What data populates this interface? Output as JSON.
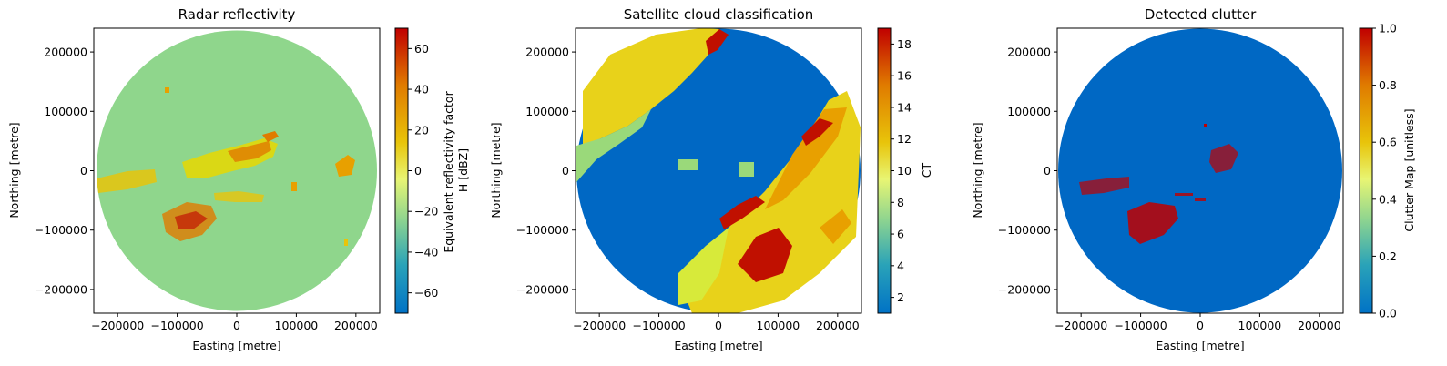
{
  "colors": {
    "cbar_stops": [
      "#0072c6",
      "#2aa3b8",
      "#8fd58f",
      "#e8f573",
      "#e8c40a",
      "#e07b00",
      "#c00000"
    ],
    "radar_background": "#8fd68c",
    "radar_echo_low": "#e8d800",
    "radar_echo_high": "#e07b00",
    "satellite_clear": "#0068c4",
    "satellite_lightgreen": "#9ad97a",
    "satellite_yellowgreen": "#d7ea3a",
    "satellite_yellow": "#e8d21a",
    "satellite_orange": "#e8a000",
    "satellite_red": "#c01000",
    "clutter_zero": "#0068c4",
    "clutter_one": "#c00000"
  },
  "chart_data": [
    {
      "type": "heatmap",
      "title": "Radar reflectivity",
      "xlabel": "Easting [metre]",
      "ylabel": "Northing [metre]",
      "xlim": [
        -240000,
        240000
      ],
      "ylim": [
        -240000,
        240000
      ],
      "xticks": [
        -200000,
        -100000,
        0,
        100000,
        200000
      ],
      "yticks": [
        -200000,
        -100000,
        0,
        100000,
        200000
      ],
      "xtick_labels": [
        "−200000",
        "−100000",
        "0",
        "100000",
        "200000"
      ],
      "ytick_labels": [
        "−200000",
        "−100000",
        "0",
        "100000",
        "200000"
      ],
      "domain_radius": 235000,
      "colorbar": {
        "label": "Equivalent reflectivity factor\nH [dBZ]",
        "range": [
          -70,
          70
        ],
        "ticks": [
          -60,
          -40,
          -20,
          0,
          20,
          40,
          60
        ],
        "tick_labels": [
          "−60",
          "−40",
          "−20",
          "0",
          "20",
          "40",
          "60"
        ]
      },
      "grid": false
    },
    {
      "type": "heatmap",
      "title": "Satellite cloud classification",
      "xlabel": "Easting [metre]",
      "ylabel": "Northing [metre]",
      "xlim": [
        -240000,
        240000
      ],
      "ylim": [
        -240000,
        240000
      ],
      "xticks": [
        -200000,
        -100000,
        0,
        100000,
        200000
      ],
      "yticks": [
        -200000,
        -100000,
        0,
        100000,
        200000
      ],
      "xtick_labels": [
        "−200000",
        "−100000",
        "0",
        "100000",
        "200000"
      ],
      "ytick_labels": [
        "−200000",
        "−100000",
        "0",
        "100000",
        "200000"
      ],
      "domain_radius": 235000,
      "colorbar": {
        "label": "CT",
        "range": [
          1,
          19
        ],
        "ticks": [
          2,
          4,
          6,
          8,
          10,
          12,
          14,
          16,
          18
        ],
        "tick_labels": [
          "2",
          "4",
          "6",
          "8",
          "10",
          "12",
          "14",
          "16",
          "18"
        ]
      },
      "grid": false
    },
    {
      "type": "heatmap",
      "title": "Detected clutter",
      "xlabel": "Easting [metre]",
      "ylabel": "Northing [metre]",
      "xlim": [
        -240000,
        240000
      ],
      "ylim": [
        -240000,
        240000
      ],
      "xticks": [
        -200000,
        -100000,
        0,
        100000,
        200000
      ],
      "yticks": [
        -200000,
        -100000,
        0,
        100000,
        200000
      ],
      "xtick_labels": [
        "−200000",
        "−100000",
        "0",
        "100000",
        "200000"
      ],
      "ytick_labels": [
        "−200000",
        "−100000",
        "0",
        "100000",
        "200000"
      ],
      "domain_radius": 235000,
      "colorbar": {
        "label": "Clutter Map [unitless]",
        "range": [
          0,
          1
        ],
        "ticks": [
          0.0,
          0.2,
          0.4,
          0.6,
          0.8,
          1.0
        ],
        "tick_labels": [
          "0.0",
          "0.2",
          "0.4",
          "0.6",
          "0.8",
          "1.0"
        ]
      },
      "grid": false
    }
  ]
}
